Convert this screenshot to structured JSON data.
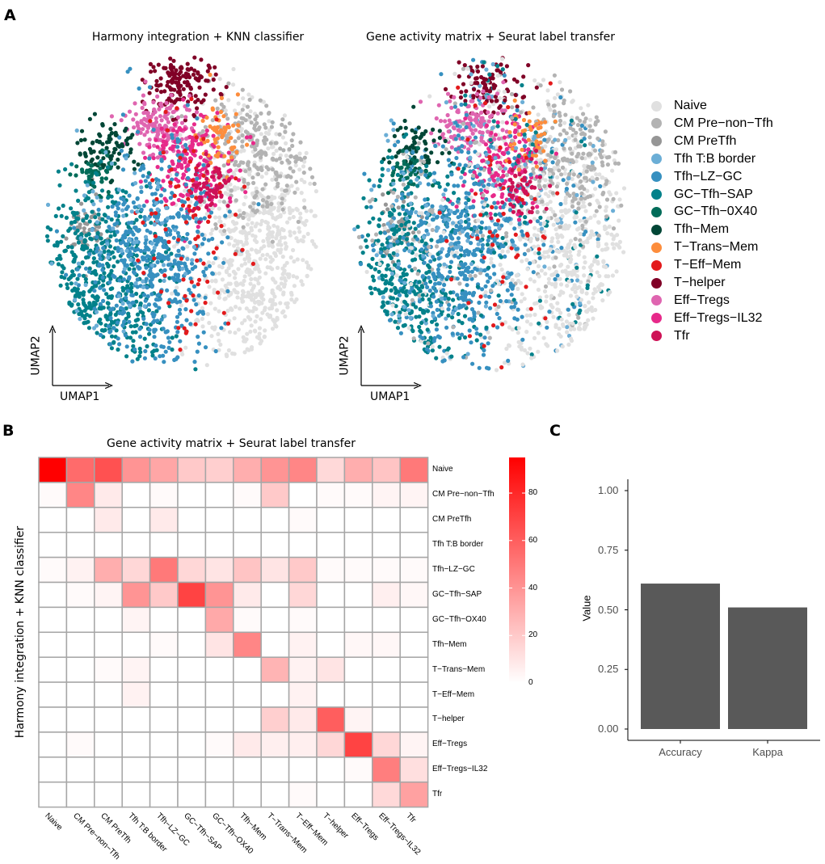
{
  "panels": {
    "a": "A",
    "b": "B",
    "c": "C"
  },
  "legend": {
    "items": [
      {
        "label": "Naive",
        "color": "#e0e0e0"
      },
      {
        "label": "CM Pre−non−Tfh",
        "color": "#b3b3b3"
      },
      {
        "label": "CM PreTfh",
        "color": "#969696"
      },
      {
        "label": "Tfh T:B border",
        "color": "#6baed6"
      },
      {
        "label": "Tfh−LZ−GC",
        "color": "#3690c0"
      },
      {
        "label": "GC−Tfh−SAP",
        "color": "#02818a"
      },
      {
        "label": "GC−Tfh−0X40",
        "color": "#016c59"
      },
      {
        "label": "Tfh−Mem",
        "color": "#014636"
      },
      {
        "label": "T−Trans−Mem",
        "color": "#fd8d3c"
      },
      {
        "label": "T−Eff−Mem",
        "color": "#e31a1c"
      },
      {
        "label": "T−helper",
        "color": "#800026"
      },
      {
        "label": "Eff−Tregs",
        "color": "#df65b0"
      },
      {
        "label": "Eff−Tregs−IL32",
        "color": "#e7298a"
      },
      {
        "label": "Tfr",
        "color": "#ce1256"
      }
    ]
  },
  "chart_data": [
    {
      "type": "scatter",
      "title": "Harmony integration + KNN classifier",
      "xlabel": "UMAP1",
      "ylabel": "UMAP2"
    },
    {
      "type": "scatter",
      "title": "Gene activity matrix + Seurat label transfer",
      "xlabel": "UMAP1",
      "ylabel": "UMAP2"
    },
    {
      "type": "heatmap",
      "title": "Gene activity matrix + Seurat label transfer",
      "ylabel": "Harmony integration + KNN classifier",
      "columns": [
        "Naive",
        "CM Pre−non−Tfh",
        "CM PreTfh",
        "Tfh T:B border",
        "Tfh−LZ−GC",
        "GC−Tfh−SAP",
        "GC−Tfh−OX40",
        "Tfh−Mem",
        "T−Trans−Mem",
        "T−Eff−Mem",
        "T−helper",
        "Eff−Tregs",
        "Eff−Tregs−IL32",
        "Tfr"
      ],
      "rows": [
        "Naive",
        "CM Pre−non−Tfh",
        "CM PreTfh",
        "Tfh T:B border",
        "Tfh−LZ−GC",
        "GC−Tfh−SAP",
        "GC−Tfh−OX40",
        "Tfh−Mem",
        "T−Trans−Mem",
        "T−Eff−Mem",
        "T−helper",
        "Eff−Tregs",
        "Eff−Tregs−IL32",
        "Tfr"
      ],
      "values": [
        [
          95,
          55,
          65,
          40,
          33,
          20,
          18,
          30,
          40,
          45,
          14,
          30,
          22,
          50
        ],
        [
          2,
          45,
          8,
          0,
          2,
          0,
          0,
          2,
          20,
          0,
          2,
          2,
          4,
          4
        ],
        [
          0,
          0,
          8,
          0,
          8,
          0,
          0,
          0,
          0,
          2,
          0,
          0,
          0,
          0
        ],
        [
          0,
          0,
          0,
          0,
          0,
          0,
          0,
          0,
          0,
          0,
          0,
          0,
          0,
          0
        ],
        [
          2,
          5,
          30,
          15,
          50,
          15,
          10,
          22,
          10,
          20,
          2,
          2,
          2,
          2
        ],
        [
          0,
          2,
          4,
          40,
          20,
          70,
          40,
          8,
          0,
          15,
          0,
          0,
          6,
          3
        ],
        [
          0,
          0,
          0,
          4,
          0,
          0,
          32,
          2,
          0,
          2,
          0,
          0,
          0,
          0
        ],
        [
          0,
          0,
          0,
          0,
          2,
          0,
          10,
          45,
          0,
          5,
          0,
          3,
          3,
          0
        ],
        [
          0,
          0,
          2,
          4,
          0,
          0,
          0,
          0,
          28,
          5,
          10,
          0,
          0,
          0
        ],
        [
          0,
          0,
          0,
          5,
          0,
          0,
          0,
          0,
          0,
          5,
          0,
          0,
          0,
          0
        ],
        [
          0,
          0,
          0,
          0,
          0,
          0,
          0,
          0,
          18,
          8,
          60,
          4,
          0,
          0
        ],
        [
          0,
          2,
          0,
          0,
          0,
          0,
          2,
          8,
          6,
          6,
          15,
          70,
          15,
          4
        ],
        [
          0,
          0,
          0,
          0,
          0,
          0,
          0,
          0,
          0,
          0,
          0,
          2,
          48,
          12
        ],
        [
          0,
          0,
          0,
          0,
          0,
          0,
          0,
          0,
          0,
          2,
          0,
          0,
          14,
          35
        ]
      ],
      "colorbar": {
        "ticks": [
          "0",
          "20",
          "40",
          "60",
          "80"
        ],
        "range": [
          0,
          95
        ],
        "low_color": "#ffffff",
        "high_color": "#ff0000"
      },
      "grid_color": "#a6a6a6"
    },
    {
      "type": "bar",
      "categories": [
        "Accuracy",
        "Kappa"
      ],
      "values": [
        0.61,
        0.51
      ],
      "ylabel": "Value",
      "xlabel": "",
      "ylim": [
        0,
        1.0
      ],
      "yticks": [
        "0.00",
        "0.25",
        "0.50",
        "0.75",
        "1.00"
      ],
      "bar_color": "#595959"
    }
  ]
}
